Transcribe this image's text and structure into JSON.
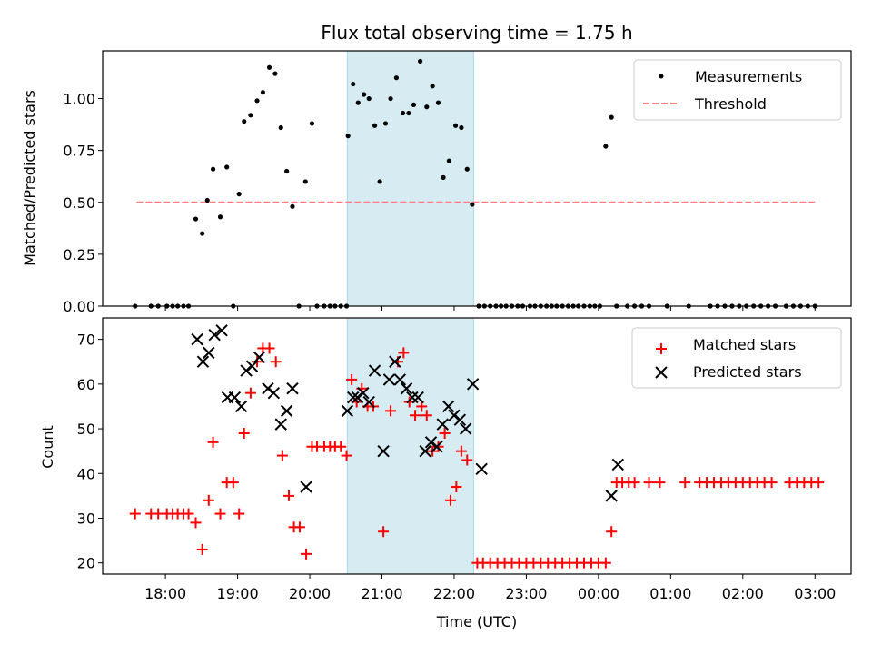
{
  "chart_data": [
    {
      "type": "scatter",
      "title": "Flux total observing time = 1.75 h",
      "xlabel": "",
      "ylabel": "Matched/Predicted stars",
      "x_unit": "hours after 18:00 UTC",
      "xlim": [
        -0.87,
        9.5
      ],
      "ylim": [
        0,
        1.23
      ],
      "yticks": [
        "0.00",
        "0.25",
        "0.50",
        "0.75",
        "1.00"
      ],
      "ytick_values": [
        0,
        0.25,
        0.5,
        0.75,
        1.0
      ],
      "shaded_region": {
        "x_start": 2.52,
        "x_end": 4.27,
        "color": "#add8e6"
      },
      "legend": {
        "placement": "top-right",
        "entries": [
          "Measurements",
          "Threshold"
        ]
      },
      "threshold": {
        "name": "Threshold",
        "value": 0.5,
        "x_start": -0.4,
        "x_end": 9.0,
        "color": "#ff7f7f"
      },
      "series": [
        {
          "name": "Measurements",
          "color": "#000000",
          "marker": "dot",
          "x": [
            -0.42,
            -0.2,
            -0.1,
            0.02,
            0.1,
            0.17,
            0.25,
            0.32,
            0.42,
            0.51,
            0.58,
            0.66,
            0.76,
            0.85,
            0.94,
            1.02,
            1.09,
            1.18,
            1.27,
            1.35,
            1.44,
            1.52,
            1.6,
            1.68,
            1.76,
            1.85,
            1.94,
            2.03,
            2.1,
            2.2,
            2.28,
            2.35,
            2.43,
            2.51,
            2.53,
            2.6,
            2.67,
            2.75,
            2.82,
            2.9,
            2.97,
            3.05,
            3.12,
            3.2,
            3.29,
            3.37,
            3.44,
            3.53,
            3.62,
            3.7,
            3.78,
            3.85,
            3.93,
            4.02,
            4.1,
            4.18,
            4.25,
            4.34,
            4.42,
            4.5,
            4.58,
            4.65,
            4.72,
            4.8,
            4.88,
            4.95,
            5.05,
            5.12,
            5.2,
            5.28,
            5.35,
            5.42,
            5.5,
            5.58,
            5.65,
            5.72,
            5.8,
            5.88,
            5.95,
            6.02,
            6.1,
            6.18,
            6.25,
            6.4,
            6.5,
            6.6,
            6.7,
            6.95,
            7.25,
            7.55,
            7.65,
            7.75,
            7.85,
            7.95,
            8.05,
            8.15,
            8.25,
            8.35,
            8.45,
            8.6,
            8.7,
            8.8,
            8.9,
            9.0
          ],
          "y": [
            0,
            0,
            0,
            0,
            0,
            0,
            0,
            0,
            0.42,
            0.35,
            0.51,
            0.66,
            0.43,
            0.67,
            0,
            0.54,
            0.89,
            0.92,
            0.99,
            1.03,
            1.15,
            1.12,
            0.86,
            0.65,
            0.48,
            0,
            0.6,
            0.88,
            0,
            0,
            0,
            0,
            0,
            0,
            0.82,
            1.07,
            0.98,
            1.02,
            1.0,
            0.87,
            0.6,
            0.88,
            1.0,
            1.1,
            0.93,
            0.93,
            0.97,
            1.18,
            0.96,
            1.06,
            0.98,
            0.62,
            0.7,
            0.87,
            0.86,
            0.66,
            0.49,
            0,
            0,
            0,
            0,
            0,
            0,
            0,
            0,
            0,
            0,
            0,
            0,
            0,
            0,
            0,
            0,
            0,
            0,
            0,
            0,
            0,
            0,
            0,
            0.77,
            0.91,
            0,
            0,
            0,
            0,
            0,
            0,
            0,
            0,
            0,
            0,
            0,
            0,
            0,
            0,
            0,
            0,
            0,
            0,
            0,
            0,
            0,
            0
          ]
        }
      ]
    },
    {
      "type": "scatter",
      "title": "",
      "xlabel": "Time (UTC)",
      "ylabel": "Count",
      "x_unit": "hours after 18:00 UTC",
      "xlim": [
        -0.87,
        9.5
      ],
      "ylim": [
        17.5,
        74.8
      ],
      "yticks": [
        "20",
        "30",
        "40",
        "50",
        "60",
        "70"
      ],
      "ytick_values": [
        20,
        30,
        40,
        50,
        60,
        70
      ],
      "xticks": [
        "18:00",
        "19:00",
        "20:00",
        "21:00",
        "22:00",
        "23:00",
        "00:00",
        "01:00",
        "02:00",
        "03:00"
      ],
      "xtick_values": [
        0,
        1,
        2,
        3,
        4,
        5,
        6,
        7,
        8,
        9
      ],
      "shaded_region": {
        "x_start": 2.52,
        "x_end": 4.27,
        "color": "#add8e6"
      },
      "legend": {
        "placement": "top-right",
        "entries": [
          "Matched stars",
          "Predicted stars"
        ]
      },
      "series": [
        {
          "name": "Matched stars",
          "color": "#ff0000",
          "marker": "plus",
          "x": [
            -0.42,
            -0.2,
            -0.1,
            0.02,
            0.1,
            0.17,
            0.25,
            0.32,
            0.42,
            0.51,
            0.6,
            0.66,
            0.76,
            0.85,
            0.94,
            1.02,
            1.09,
            1.18,
            1.27,
            1.35,
            1.44,
            1.53,
            1.62,
            1.71,
            1.78,
            1.86,
            1.95,
            2.03,
            2.1,
            2.2,
            2.28,
            2.35,
            2.43,
            2.51,
            2.58,
            2.65,
            2.72,
            2.8,
            2.88,
            3.02,
            3.12,
            3.22,
            3.3,
            3.38,
            3.46,
            3.55,
            3.62,
            3.7,
            3.78,
            3.87,
            3.95,
            4.03,
            4.1,
            4.18,
            4.32,
            4.4,
            4.5,
            4.6,
            4.7,
            4.8,
            4.9,
            5.0,
            5.1,
            5.2,
            5.3,
            5.4,
            5.5,
            5.6,
            5.7,
            5.8,
            5.9,
            6.0,
            6.1,
            6.18,
            6.25,
            6.33,
            6.42,
            6.5,
            6.7,
            6.85,
            7.2,
            7.4,
            7.5,
            7.6,
            7.7,
            7.8,
            7.9,
            8.0,
            8.1,
            8.2,
            8.3,
            8.4,
            8.65,
            8.75,
            8.85,
            8.95,
            9.05
          ],
          "y": [
            31,
            31,
            31,
            31,
            31,
            31,
            31,
            31,
            29,
            23,
            34,
            47,
            31,
            38,
            38,
            31,
            49,
            58,
            65,
            68,
            68,
            65,
            44,
            35,
            28,
            28,
            22,
            46,
            46,
            46,
            46,
            46,
            46,
            44,
            61,
            56,
            59,
            55,
            55,
            27,
            54,
            65,
            67,
            56,
            53,
            55,
            53,
            45,
            46,
            49,
            34,
            37,
            45,
            43,
            20,
            20,
            20,
            20,
            20,
            20,
            20,
            20,
            20,
            20,
            20,
            20,
            20,
            20,
            20,
            20,
            20,
            20,
            20,
            27,
            38,
            38,
            38,
            38,
            38,
            38,
            38,
            38,
            38,
            38,
            38,
            38,
            38,
            38,
            38,
            38,
            38,
            38,
            38,
            38,
            38,
            38,
            38
          ]
        },
        {
          "name": "Predicted stars",
          "color": "#000000",
          "marker": "x",
          "x": [
            0.44,
            0.52,
            0.6,
            0.68,
            0.78,
            0.86,
            0.96,
            1.05,
            1.12,
            1.2,
            1.3,
            1.42,
            1.5,
            1.6,
            1.68,
            1.76,
            1.95,
            2.52,
            2.6,
            2.66,
            2.74,
            2.82,
            2.9,
            3.02,
            3.1,
            3.18,
            3.25,
            3.34,
            3.42,
            3.5,
            3.6,
            3.68,
            3.76,
            3.84,
            3.92,
            4.0,
            4.08,
            4.16,
            4.26,
            4.38,
            6.18,
            6.27
          ],
          "y": [
            70,
            65,
            67,
            71,
            72,
            57,
            57,
            55,
            63,
            64,
            66,
            59,
            58,
            51,
            54,
            59,
            37,
            54,
            57,
            57,
            58,
            56,
            63,
            45,
            61,
            65,
            61,
            59,
            57,
            57,
            45,
            47,
            46,
            51,
            55,
            53,
            52,
            50,
            60,
            41,
            35,
            42
          ]
        }
      ]
    }
  ]
}
